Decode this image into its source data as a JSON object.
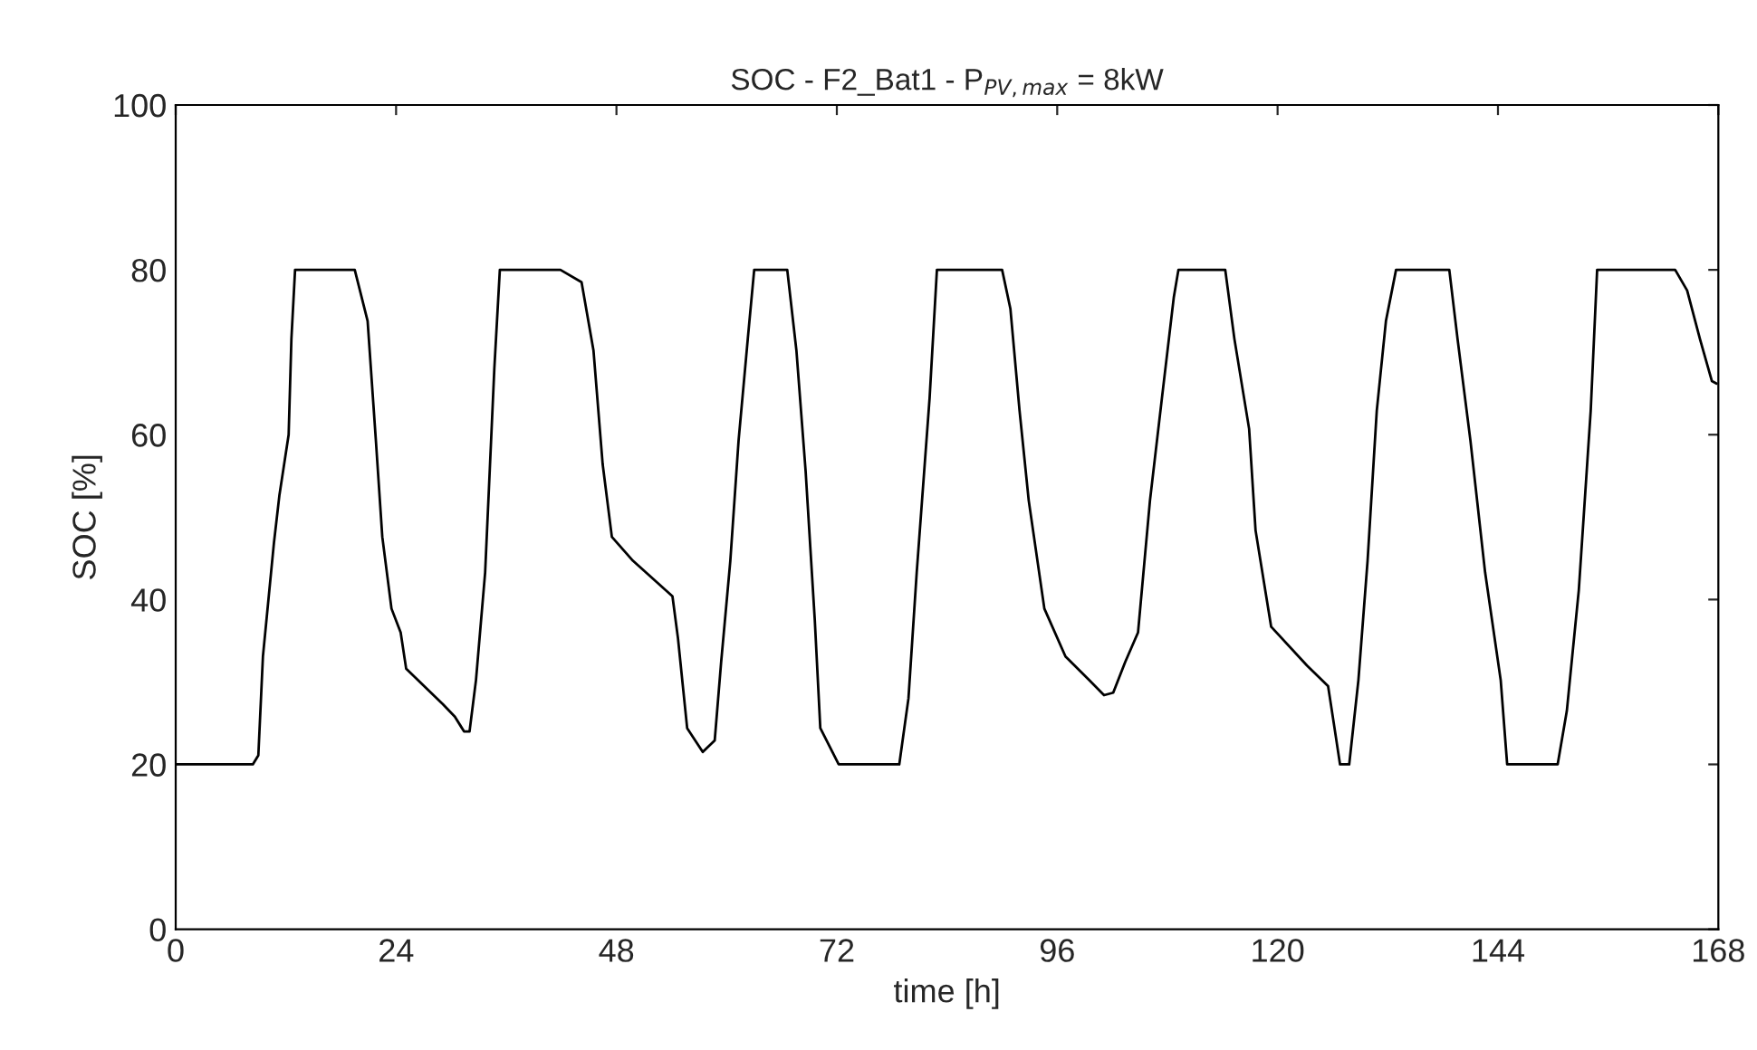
{
  "chart_data": {
    "type": "line",
    "title": "SOC - F2_Bat1 - P$_{PV,max}$ = 8kW",
    "xlabel": "time [h]",
    "ylabel": "SOC [%]",
    "xlim": [
      0,
      168
    ],
    "xticks": [
      0,
      24,
      48,
      72,
      96,
      120,
      144,
      168
    ],
    "ylim": [
      0,
      100
    ],
    "yticks": [
      0,
      20,
      40,
      60,
      80,
      100
    ],
    "grid": false,
    "legend": false,
    "marker": "none",
    "line_style": "solid",
    "series": [
      {
        "color": "#000000",
        "x": [
          0,
          8.4,
          9.0,
          9.5,
          10.7,
          11.3,
          12.3,
          12.6,
          13.0,
          19.5,
          20.9,
          21.8,
          22.5,
          23.5,
          24.5,
          25.1,
          29.1,
          30.4,
          31.4,
          32.0,
          32.7,
          33.7,
          34.7,
          35.3,
          41.9,
          44.2,
          45.5,
          46.5,
          47.5,
          49.8,
          54.1,
          54.7,
          55.7,
          57.4,
          58.7,
          59.4,
          60.4,
          61.3,
          62.3,
          63.0,
          66.6,
          67.6,
          68.6,
          69.6,
          70.2,
          72.2,
          78.8,
          79.8,
          80.7,
          82.1,
          82.9,
          90.0,
          90.9,
          91.9,
          92.9,
          94.6,
          96.9,
          99.5,
          101.1,
          102.1,
          103.4,
          104.8,
          106.1,
          107.4,
          108.7,
          109.2,
          114.3,
          115.3,
          116.9,
          117.6,
          119.3,
          123.2,
          125.5,
          126.2,
          126.8,
          127.8,
          128.8,
          129.8,
          130.8,
          131.8,
          132.9,
          138.7,
          139.6,
          141.0,
          142.6,
          144.3,
          145.0,
          150.5,
          151.5,
          152.8,
          154.1,
          154.8,
          163.3,
          164.6,
          166.0,
          167.3,
          167.8
        ],
        "values": [
          20,
          20,
          21.1,
          33.1,
          46.9,
          52.7,
          60,
          71.6,
          80,
          80,
          73.8,
          59.3,
          47.6,
          38.9,
          36,
          31.6,
          27.3,
          25.8,
          24,
          24,
          30.2,
          43.3,
          68,
          80,
          80,
          78.5,
          70.2,
          56.4,
          47.6,
          44.7,
          40.4,
          35.3,
          24.4,
          21.5,
          22.9,
          32.4,
          44.7,
          59.3,
          71.6,
          80,
          80,
          70.2,
          55.6,
          37.5,
          24.4,
          20,
          20,
          28,
          43.3,
          64.4,
          80,
          80,
          75.3,
          62.9,
          52,
          38.9,
          33.1,
          30.2,
          28.4,
          28.7,
          32.4,
          36,
          52,
          64.4,
          76.7,
          80,
          80,
          71.6,
          60.7,
          48.4,
          36.7,
          32,
          29.5,
          24.4,
          20,
          20,
          30.2,
          44.7,
          62.9,
          73.8,
          80,
          80,
          71.6,
          59.3,
          43.3,
          30.2,
          20,
          20,
          26.5,
          41.1,
          62.9,
          80,
          80,
          77.5,
          71.6,
          66.5,
          66.2
        ]
      }
    ]
  }
}
